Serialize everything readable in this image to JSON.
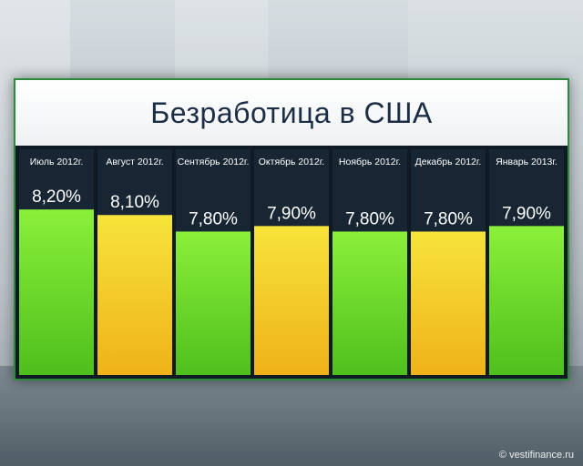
{
  "title": "Безработица в США",
  "watermark": "© vestifinance.ru",
  "colors": {
    "green_bar": "#6ed42b",
    "yellow_bar": "#f2d21d",
    "header_bg": "#0f1a24",
    "value_text": "#ffffff"
  },
  "chart_data": {
    "type": "bar",
    "title": "Безработица в США",
    "xlabel": "",
    "ylabel": "",
    "categories": [
      "Июль 2012г.",
      "Август 2012г.",
      "Сентябрь 2012г.",
      "Октябрь 2012г.",
      "Ноябрь 2012г.",
      "Декабрь 2012г.",
      "Январь 2013г."
    ],
    "values": [
      8.2,
      8.1,
      7.8,
      7.9,
      7.8,
      7.8,
      7.9
    ],
    "value_labels": [
      "8,20%",
      "8,10%",
      "7,80%",
      "7,90%",
      "7,80%",
      "7,80%",
      "7,90%"
    ],
    "bar_colors": [
      "green",
      "yellow",
      "green",
      "yellow",
      "green",
      "yellow",
      "green"
    ],
    "grid": false,
    "legend": "none"
  }
}
